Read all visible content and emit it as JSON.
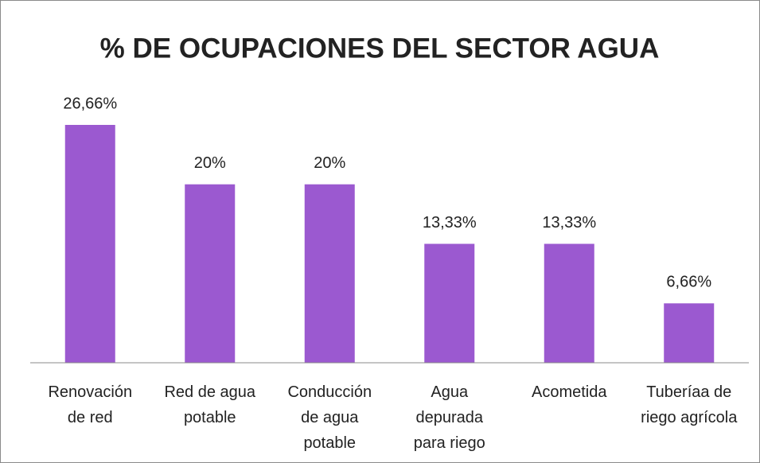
{
  "chart_data": {
    "type": "bar",
    "title": "% DE OCUPACIONES DEL SECTOR AGUA",
    "categories": [
      "Renovación\nde red",
      "Red de agua\npotable",
      "Conducción\nde agua\npotable",
      "Agua\ndepurada\npara riego",
      "Acometida",
      "Tuberíaa de\nriego agrícola"
    ],
    "values": [
      26.66,
      20,
      20,
      13.33,
      13.33,
      6.66
    ],
    "value_labels": [
      "26,66%",
      "20%",
      "20%",
      "13,33%",
      "13,33%",
      "6,66%"
    ],
    "color": "#9b59d0"
  }
}
